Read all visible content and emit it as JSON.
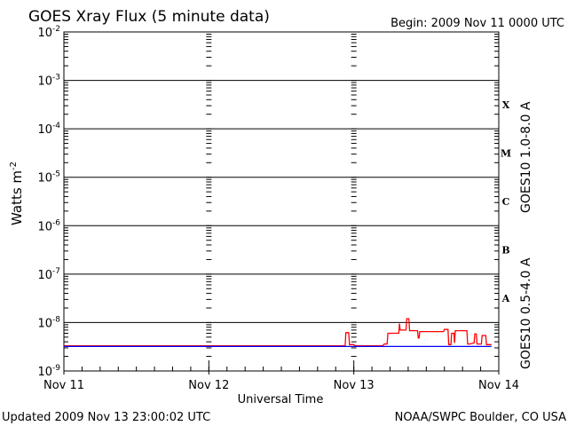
{
  "chart_data": {
    "type": "line",
    "title": "GOES Xray Flux (5 minute data)",
    "begin_label": "Begin:  2009 Nov 11 0000 UTC",
    "xlabel": "Universal Time",
    "ylabel": "Watts m",
    "ylabel_sup": "-2",
    "y_scale": "log",
    "ylim": [
      1e-09,
      0.01
    ],
    "y_ticks": [
      {
        "base": "10",
        "exp": "-2",
        "value": 0.01
      },
      {
        "base": "10",
        "exp": "-3",
        "value": 0.001
      },
      {
        "base": "10",
        "exp": "-4",
        "value": 0.0001
      },
      {
        "base": "10",
        "exp": "-5",
        "value": 1e-05
      },
      {
        "base": "10",
        "exp": "-6",
        "value": 1e-06
      },
      {
        "base": "10",
        "exp": "-7",
        "value": 1e-07
      },
      {
        "base": "10",
        "exp": "-8",
        "value": 1e-08
      },
      {
        "base": "10",
        "exp": "-9",
        "value": 1e-09
      }
    ],
    "x_unit": "days since Nov 11 0000 UTC",
    "xlim": [
      0,
      3
    ],
    "x_ticks": [
      {
        "label": "Nov 11",
        "value": 0
      },
      {
        "label": "Nov 12",
        "value": 1
      },
      {
        "label": "Nov 13",
        "value": 2
      },
      {
        "label": "Nov 14",
        "value": 3
      }
    ],
    "flare_classes": [
      {
        "label": "X",
        "value": 0.000316
      },
      {
        "label": "M",
        "value": 3.16e-05
      },
      {
        "label": "C",
        "value": 3.16e-06
      },
      {
        "label": "B",
        "value": 3.16e-07
      },
      {
        "label": "A",
        "value": 3.16e-08
      }
    ],
    "series": [
      {
        "name": "GOES10 1.0-8.0 A",
        "color": "#ff0000",
        "points": [
          [
            0.0,
            3.3e-09
          ],
          [
            1.94,
            3.3e-09
          ],
          [
            1.945,
            6.2e-09
          ],
          [
            1.965,
            6.2e-09
          ],
          [
            1.97,
            3.5e-09
          ],
          [
            2.0,
            3.5e-09
          ],
          [
            2.01,
            3.3e-09
          ],
          [
            2.2,
            3.3e-09
          ],
          [
            2.21,
            3.6e-09
          ],
          [
            2.23,
            3.6e-09
          ],
          [
            2.235,
            6e-09
          ],
          [
            2.31,
            6e-09
          ],
          [
            2.315,
            9.5e-09
          ],
          [
            2.32,
            7e-09
          ],
          [
            2.36,
            7e-09
          ],
          [
            2.365,
            1.2e-08
          ],
          [
            2.38,
            1.2e-08
          ],
          [
            2.385,
            6.8e-09
          ],
          [
            2.44,
            6.8e-09
          ],
          [
            2.445,
            4.8e-09
          ],
          [
            2.45,
            4.8e-09
          ],
          [
            2.455,
            6.5e-09
          ],
          [
            2.62,
            6.5e-09
          ],
          [
            2.625,
            7.2e-09
          ],
          [
            2.65,
            7.2e-09
          ],
          [
            2.655,
            3.5e-09
          ],
          [
            2.67,
            3.5e-09
          ],
          [
            2.675,
            6e-09
          ],
          [
            2.69,
            6e-09
          ],
          [
            2.695,
            3.8e-09
          ],
          [
            2.7,
            6.8e-09
          ],
          [
            2.78,
            6.8e-09
          ],
          [
            2.785,
            3.6e-09
          ],
          [
            2.8,
            3.6e-09
          ],
          [
            2.83,
            3.8e-09
          ],
          [
            2.835,
            5.8e-09
          ],
          [
            2.845,
            5.8e-09
          ],
          [
            2.85,
            3.6e-09
          ],
          [
            2.88,
            3.6e-09
          ],
          [
            2.885,
            5.4e-09
          ],
          [
            2.91,
            5.4e-09
          ],
          [
            2.915,
            3.5e-09
          ],
          [
            2.95,
            3.5e-09
          ]
        ]
      },
      {
        "name": "GOES10 0.5-4.0 A",
        "color": "#0000ff",
        "points": [
          [
            0.0,
            3.2e-09
          ],
          [
            2.95,
            3.2e-09
          ]
        ]
      }
    ],
    "footer_left": "Updated 2009 Nov 13 23:00:02 UTC",
    "footer_right": "NOAA/SWPC Boulder, CO USA"
  }
}
